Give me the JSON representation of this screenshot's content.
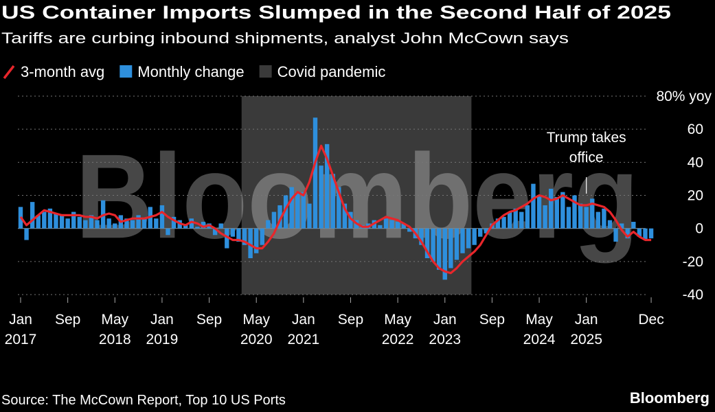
{
  "chart_data": {
    "type": "bar-line",
    "title": "US Container Imports Slumped in the Second Half of 2025",
    "subtitle": "Tariffs are curbing inbound shipments, analyst John McCown says",
    "source": "Source: The McCown Report, Top 10 US Ports",
    "logo": "Bloomberg",
    "watermark": "Bloomberg",
    "x": [
      "2017-01",
      "2017-02",
      "2017-03",
      "2017-04",
      "2017-05",
      "2017-06",
      "2017-07",
      "2017-08",
      "2017-09",
      "2017-10",
      "2017-11",
      "2017-12",
      "2018-01",
      "2018-02",
      "2018-03",
      "2018-04",
      "2018-05",
      "2018-06",
      "2018-07",
      "2018-08",
      "2018-09",
      "2018-10",
      "2018-11",
      "2018-12",
      "2019-01",
      "2019-02",
      "2019-03",
      "2019-04",
      "2019-05",
      "2019-06",
      "2019-07",
      "2019-08",
      "2019-09",
      "2019-10",
      "2019-11",
      "2019-12",
      "2020-01",
      "2020-02",
      "2020-03",
      "2020-04",
      "2020-05",
      "2020-06",
      "2020-07",
      "2020-08",
      "2020-09",
      "2020-10",
      "2020-11",
      "2020-12",
      "2021-01",
      "2021-02",
      "2021-03",
      "2021-04",
      "2021-05",
      "2021-06",
      "2021-07",
      "2021-08",
      "2021-09",
      "2021-10",
      "2021-11",
      "2021-12",
      "2022-01",
      "2022-02",
      "2022-03",
      "2022-04",
      "2022-05",
      "2022-06",
      "2022-07",
      "2022-08",
      "2022-09",
      "2022-10",
      "2022-11",
      "2022-12",
      "2023-01",
      "2023-02",
      "2023-03",
      "2023-04",
      "2023-05",
      "2023-06",
      "2023-07",
      "2023-08",
      "2023-09",
      "2023-10",
      "2023-11",
      "2023-12",
      "2024-01",
      "2024-02",
      "2024-03",
      "2024-04",
      "2024-05",
      "2024-06",
      "2024-07",
      "2024-08",
      "2024-09",
      "2024-10",
      "2024-11",
      "2024-12",
      "2025-01",
      "2025-02",
      "2025-03",
      "2025-04",
      "2025-05",
      "2025-06",
      "2025-07",
      "2025-08",
      "2025-09",
      "2025-10",
      "2025-11",
      "2025-12"
    ],
    "series": [
      {
        "name": "Monthly change",
        "type": "bar",
        "color": "#2e8fdc",
        "values": [
          13,
          -7,
          16,
          8,
          10,
          12,
          9,
          8,
          6,
          10,
          7,
          5,
          8,
          5,
          17,
          6,
          3,
          8,
          6,
          5,
          8,
          6,
          13,
          6,
          14,
          -4,
          7,
          5,
          2,
          6,
          1,
          4,
          3,
          -4,
          3,
          -12,
          -5,
          -8,
          -10,
          -18,
          -15,
          -10,
          5,
          10,
          14,
          20,
          25,
          22,
          22,
          15,
          67,
          38,
          51,
          33,
          25,
          15,
          10,
          5,
          2,
          3,
          5,
          2,
          6,
          5,
          4,
          3,
          -2,
          -6,
          -10,
          -18,
          -20,
          -25,
          -31,
          -24,
          -19,
          -15,
          -12,
          -10,
          -5,
          -3,
          3,
          6,
          7,
          10,
          12,
          10,
          14,
          27,
          20,
          14,
          24,
          19,
          22,
          13,
          20,
          15,
          13,
          18,
          10,
          12,
          5,
          -8,
          3,
          -6,
          4,
          -5,
          -7,
          -6
        ]
      },
      {
        "name": "3-month avg",
        "type": "line",
        "color": "#e8262b",
        "values": [
          7,
          2,
          5,
          8,
          11,
          10,
          9,
          8,
          8,
          8,
          8,
          7,
          7,
          6,
          8,
          9,
          8,
          4,
          5,
          6,
          6,
          6,
          7,
          8,
          10,
          7,
          5,
          3,
          2,
          4,
          3,
          1,
          2,
          0,
          -3,
          -5,
          -7,
          -7,
          -8,
          -10,
          -12,
          -12,
          -8,
          -3,
          5,
          12,
          18,
          22,
          20,
          28,
          40,
          50,
          42,
          32,
          22,
          12,
          6,
          3,
          1,
          1,
          3,
          5,
          7,
          6,
          5,
          3,
          1,
          -3,
          -8,
          -14,
          -20,
          -24,
          -26,
          -27,
          -24,
          -20,
          -17,
          -14,
          -10,
          -4,
          2,
          5,
          8,
          10,
          11,
          13,
          15,
          18,
          20,
          19,
          17,
          18,
          20,
          18,
          16,
          14,
          14,
          15,
          14,
          13,
          10,
          5,
          -1,
          -5,
          -2,
          -5,
          -7,
          -7
        ]
      }
    ],
    "shade": {
      "name": "Covid pandemic",
      "start": "2020-03",
      "end": "2023-05",
      "color": "#3a3a3a"
    },
    "annotation": {
      "text_lines": [
        "Trump takes",
        "office"
      ],
      "x": "2025-01"
    },
    "ylim": [
      -40,
      80
    ],
    "yticks": [
      -40,
      -20,
      0,
      20,
      40,
      60,
      {
        "value": 80,
        "label": "80% yoy"
      }
    ],
    "xticks": [
      {
        "value": "2017-01",
        "label": [
          "Jan",
          "2017"
        ]
      },
      {
        "value": "2017-09",
        "label": [
          "Sep"
        ]
      },
      {
        "value": "2018-05",
        "label": [
          "May",
          "2018"
        ]
      },
      {
        "value": "2019-01",
        "label": [
          "Jan",
          "2019"
        ]
      },
      {
        "value": "2019-09",
        "label": [
          "Sep"
        ]
      },
      {
        "value": "2020-05",
        "label": [
          "May",
          "2020"
        ]
      },
      {
        "value": "2021-01",
        "label": [
          "Jan",
          "2021"
        ]
      },
      {
        "value": "2021-09",
        "label": [
          "Sep"
        ]
      },
      {
        "value": "2022-05",
        "label": [
          "May",
          "2022"
        ]
      },
      {
        "value": "2023-01",
        "label": [
          "Jan",
          "2023"
        ]
      },
      {
        "value": "2023-09",
        "label": [
          "Sep"
        ]
      },
      {
        "value": "2024-05",
        "label": [
          "May",
          "2024"
        ]
      },
      {
        "value": "2025-01",
        "label": [
          "Jan",
          "2025"
        ]
      },
      {
        "value": "2025-12",
        "label": [
          "Dec"
        ]
      }
    ],
    "grid": true
  }
}
